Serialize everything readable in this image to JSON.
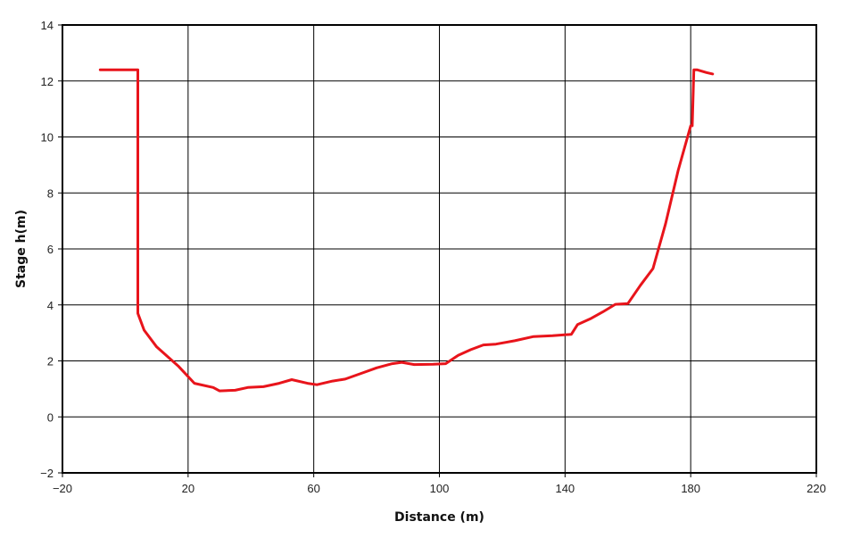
{
  "chart_data": {
    "type": "line",
    "title": "",
    "xlabel": "Distance (m)",
    "ylabel": "Stage h(m)",
    "xlim": [
      -20,
      220
    ],
    "ylim": [
      -2,
      14
    ],
    "x_ticks": [
      -20,
      20,
      60,
      100,
      140,
      180,
      220
    ],
    "y_ticks": [
      -2,
      0,
      2,
      4,
      6,
      8,
      10,
      12,
      14
    ],
    "grid": true,
    "legend": "none",
    "colors": {
      "line": "#e8141b",
      "grid": "#000000",
      "frame": "#000000"
    },
    "series": [
      {
        "x": [
          -8,
          4,
          4,
          4,
          6,
          10,
          17,
          22,
          28,
          30,
          35,
          39,
          44,
          49,
          53,
          58,
          61,
          66,
          70,
          75,
          80,
          85,
          88,
          92,
          98,
          102,
          106,
          110,
          114,
          118,
          124,
          130,
          136,
          142,
          144,
          148,
          152,
          156,
          160,
          164,
          168,
          172,
          176,
          180,
          180.5,
          181,
          182,
          185,
          187
        ],
        "y": [
          12.4,
          12.4,
          12.4,
          3.7,
          3.1,
          2.5,
          1.8,
          1.2,
          1.05,
          0.93,
          0.95,
          1.05,
          1.08,
          1.2,
          1.33,
          1.2,
          1.15,
          1.28,
          1.35,
          1.55,
          1.75,
          1.9,
          1.95,
          1.87,
          1.88,
          1.9,
          2.2,
          2.4,
          2.57,
          2.6,
          2.72,
          2.87,
          2.9,
          2.95,
          3.3,
          3.5,
          3.75,
          4.02,
          4.05,
          4.7,
          5.3,
          6.9,
          8.8,
          10.4,
          10.4,
          12.4,
          12.4,
          12.3,
          12.25
        ]
      }
    ]
  }
}
